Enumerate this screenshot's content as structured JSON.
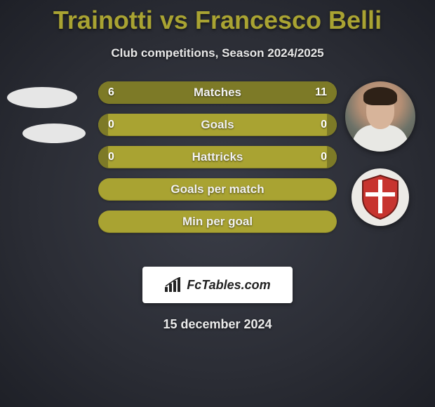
{
  "title": "Trainotti vs Francesco Belli",
  "subtitle": "Club competitions, Season 2024/2025",
  "date": "15 december 2024",
  "colors": {
    "accent": "#a9a332",
    "accent_dark": "#7d7a27",
    "bg_center": "#3a3d47",
    "bg_edge": "#1e2027",
    "text": "#e8e8e8"
  },
  "fctables": {
    "label": "FcTables.com"
  },
  "badge": {
    "shield_fill": "#c7342f",
    "shield_stroke": "#6d1b17",
    "cross_color": "#ffffff"
  },
  "bars": [
    {
      "label": "Matches",
      "left": "6",
      "right": "11",
      "left_pct": 35,
      "right_pct": 65,
      "show_values": true
    },
    {
      "label": "Goals",
      "left": "0",
      "right": "0",
      "left_pct": 4,
      "right_pct": 4,
      "show_values": true
    },
    {
      "label": "Hattricks",
      "left": "0",
      "right": "0",
      "left_pct": 4,
      "right_pct": 4,
      "show_values": true
    },
    {
      "label": "Goals per match",
      "left": "",
      "right": "",
      "left_pct": 0,
      "right_pct": 0,
      "show_values": false
    },
    {
      "label": "Min per goal",
      "left": "",
      "right": "",
      "left_pct": 0,
      "right_pct": 0,
      "show_values": false
    }
  ]
}
